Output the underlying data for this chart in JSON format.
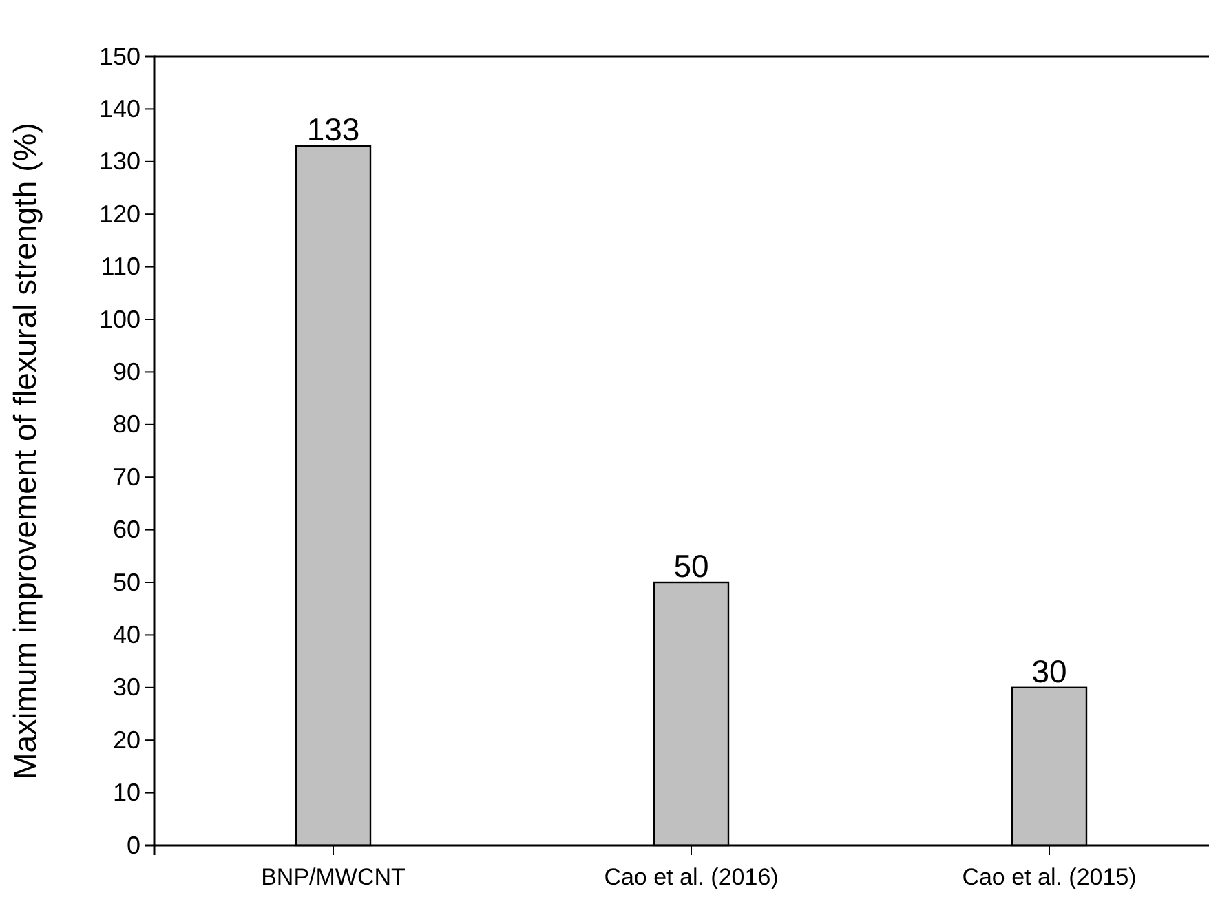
{
  "chart_data": {
    "type": "bar",
    "ylabel": "Maximum improvement of flexural strength (%)",
    "categories": [
      "BNP/MWCNT",
      "Cao et al. (2016)",
      "Cao et al. (2015)"
    ],
    "values": [
      133,
      50,
      30
    ],
    "color": "#c0c0c0",
    "ylim": [
      0,
      150
    ],
    "yticks": [
      0,
      10,
      20,
      30,
      40,
      50,
      60,
      70,
      80,
      90,
      100,
      110,
      120,
      130,
      140,
      150
    ],
    "data_labels": true,
    "grid": false
  }
}
